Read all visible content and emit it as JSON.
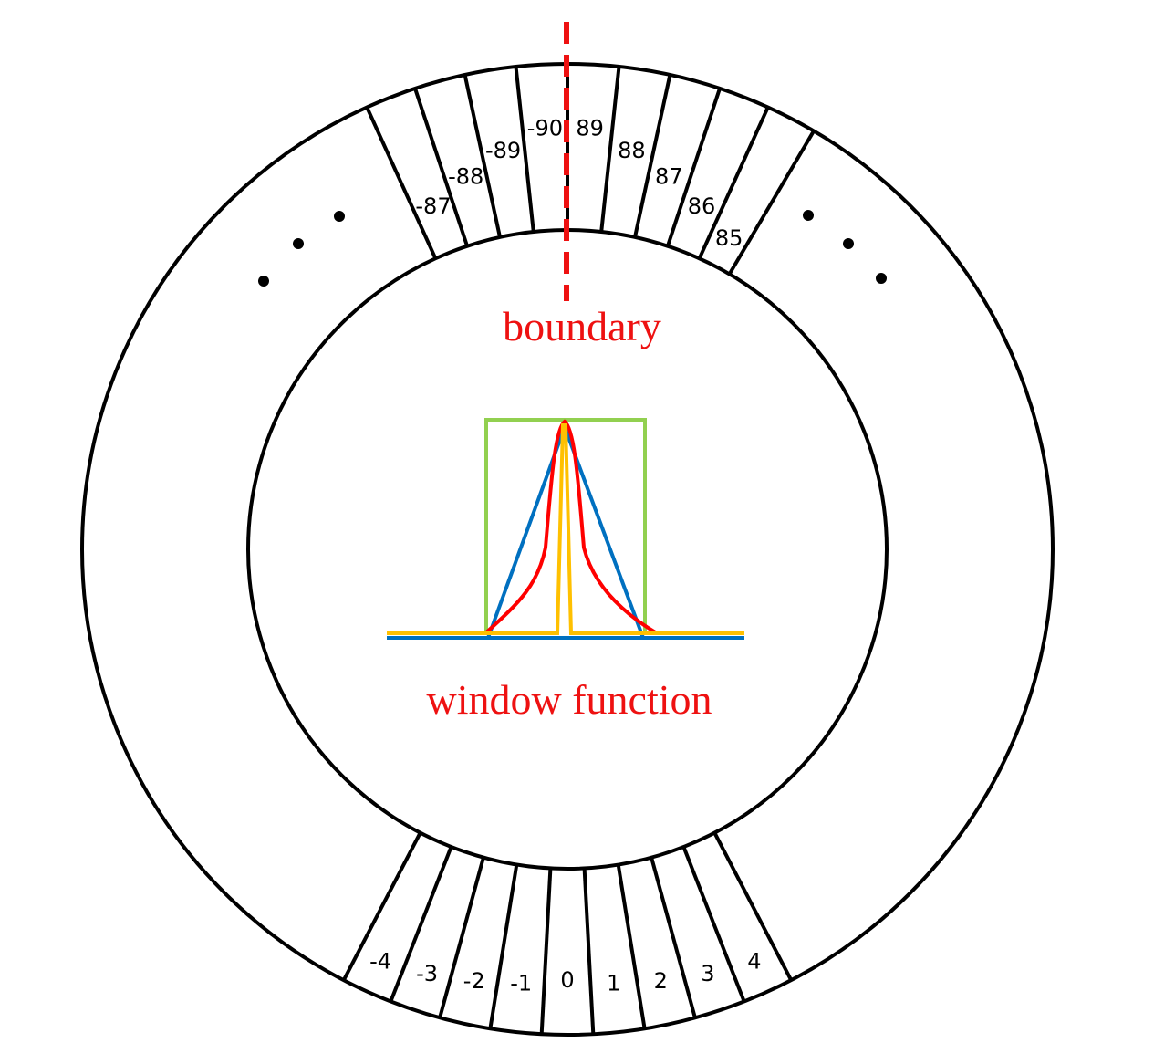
{
  "top_bins": [
    "-87",
    "-88",
    "-89",
    "-90",
    "89",
    "88",
    "87",
    "86",
    "85"
  ],
  "bottom_bins": [
    "-4",
    "-3",
    "-2",
    "-1",
    "0",
    "1",
    "2",
    "3",
    "4"
  ],
  "boundary_label": "boundary",
  "window_label": "window function",
  "colors": {
    "ring": "#000000",
    "boundary": "#ee1111",
    "labels": "#ee1111",
    "rect_window": "#92d050",
    "triangular_window": "#0070c0",
    "bell_window": "#ff0000",
    "narrow_window": "#ffc000"
  },
  "window_curves": [
    "rectangular",
    "triangular",
    "bell",
    "narrow-pulse"
  ]
}
